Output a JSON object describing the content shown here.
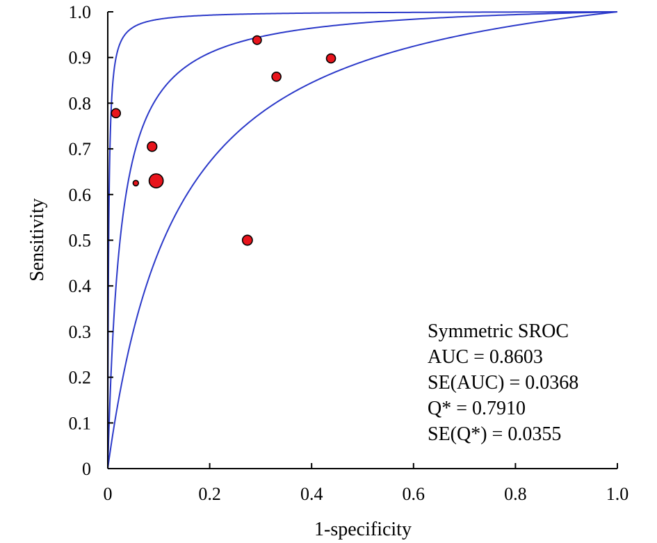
{
  "chart_data": {
    "type": "scatter",
    "title": "",
    "xlabel": "1-specificity",
    "ylabel": "Sensitivity",
    "xlim": [
      0,
      1.0
    ],
    "ylim": [
      0,
      1.0
    ],
    "x_ticks": [
      0,
      0.2,
      0.4,
      0.6,
      0.8,
      1.0
    ],
    "x_tick_labels": [
      "0",
      "0.2",
      "0.4",
      "0.6",
      "0.8",
      "1.0"
    ],
    "y_ticks": [
      0,
      0.1,
      0.2,
      0.3,
      0.4,
      0.5,
      0.6,
      0.7,
      0.8,
      0.9,
      1.0
    ],
    "y_tick_labels": [
      "0",
      "0.1",
      "0.2",
      "0.3",
      "0.4",
      "0.5",
      "0.6",
      "0.7",
      "0.8",
      "0.9",
      "1.0"
    ],
    "grid": false,
    "legend": "none",
    "colors": {
      "points": "#e8141c",
      "point_stroke": "#000000",
      "curves": "#2b39c9"
    },
    "points": [
      {
        "x": 0.016,
        "y": 0.778,
        "weight": 1.0
      },
      {
        "x": 0.055,
        "y": 0.625,
        "weight": 0.6
      },
      {
        "x": 0.087,
        "y": 0.705,
        "weight": 1.05
      },
      {
        "x": 0.095,
        "y": 0.63,
        "weight": 1.55
      },
      {
        "x": 0.274,
        "y": 0.5,
        "weight": 1.1
      },
      {
        "x": 0.293,
        "y": 0.938,
        "weight": 0.95
      },
      {
        "x": 0.331,
        "y": 0.858,
        "weight": 1.0
      },
      {
        "x": 0.438,
        "y": 0.898,
        "weight": 1.0
      }
    ],
    "curves": [
      {
        "role": "upper",
        "dor_logit": 6.3
      },
      {
        "role": "sroc",
        "dor_logit": 3.7
      },
      {
        "role": "lower",
        "dor_logit": 2.1
      }
    ],
    "annotation": {
      "lines": [
        "Symmetric SROC",
        "AUC = 0.8603",
        "SE(AUC) = 0.0368",
        "Q* = 0.7910",
        "SE(Q*) = 0.0355"
      ]
    }
  }
}
